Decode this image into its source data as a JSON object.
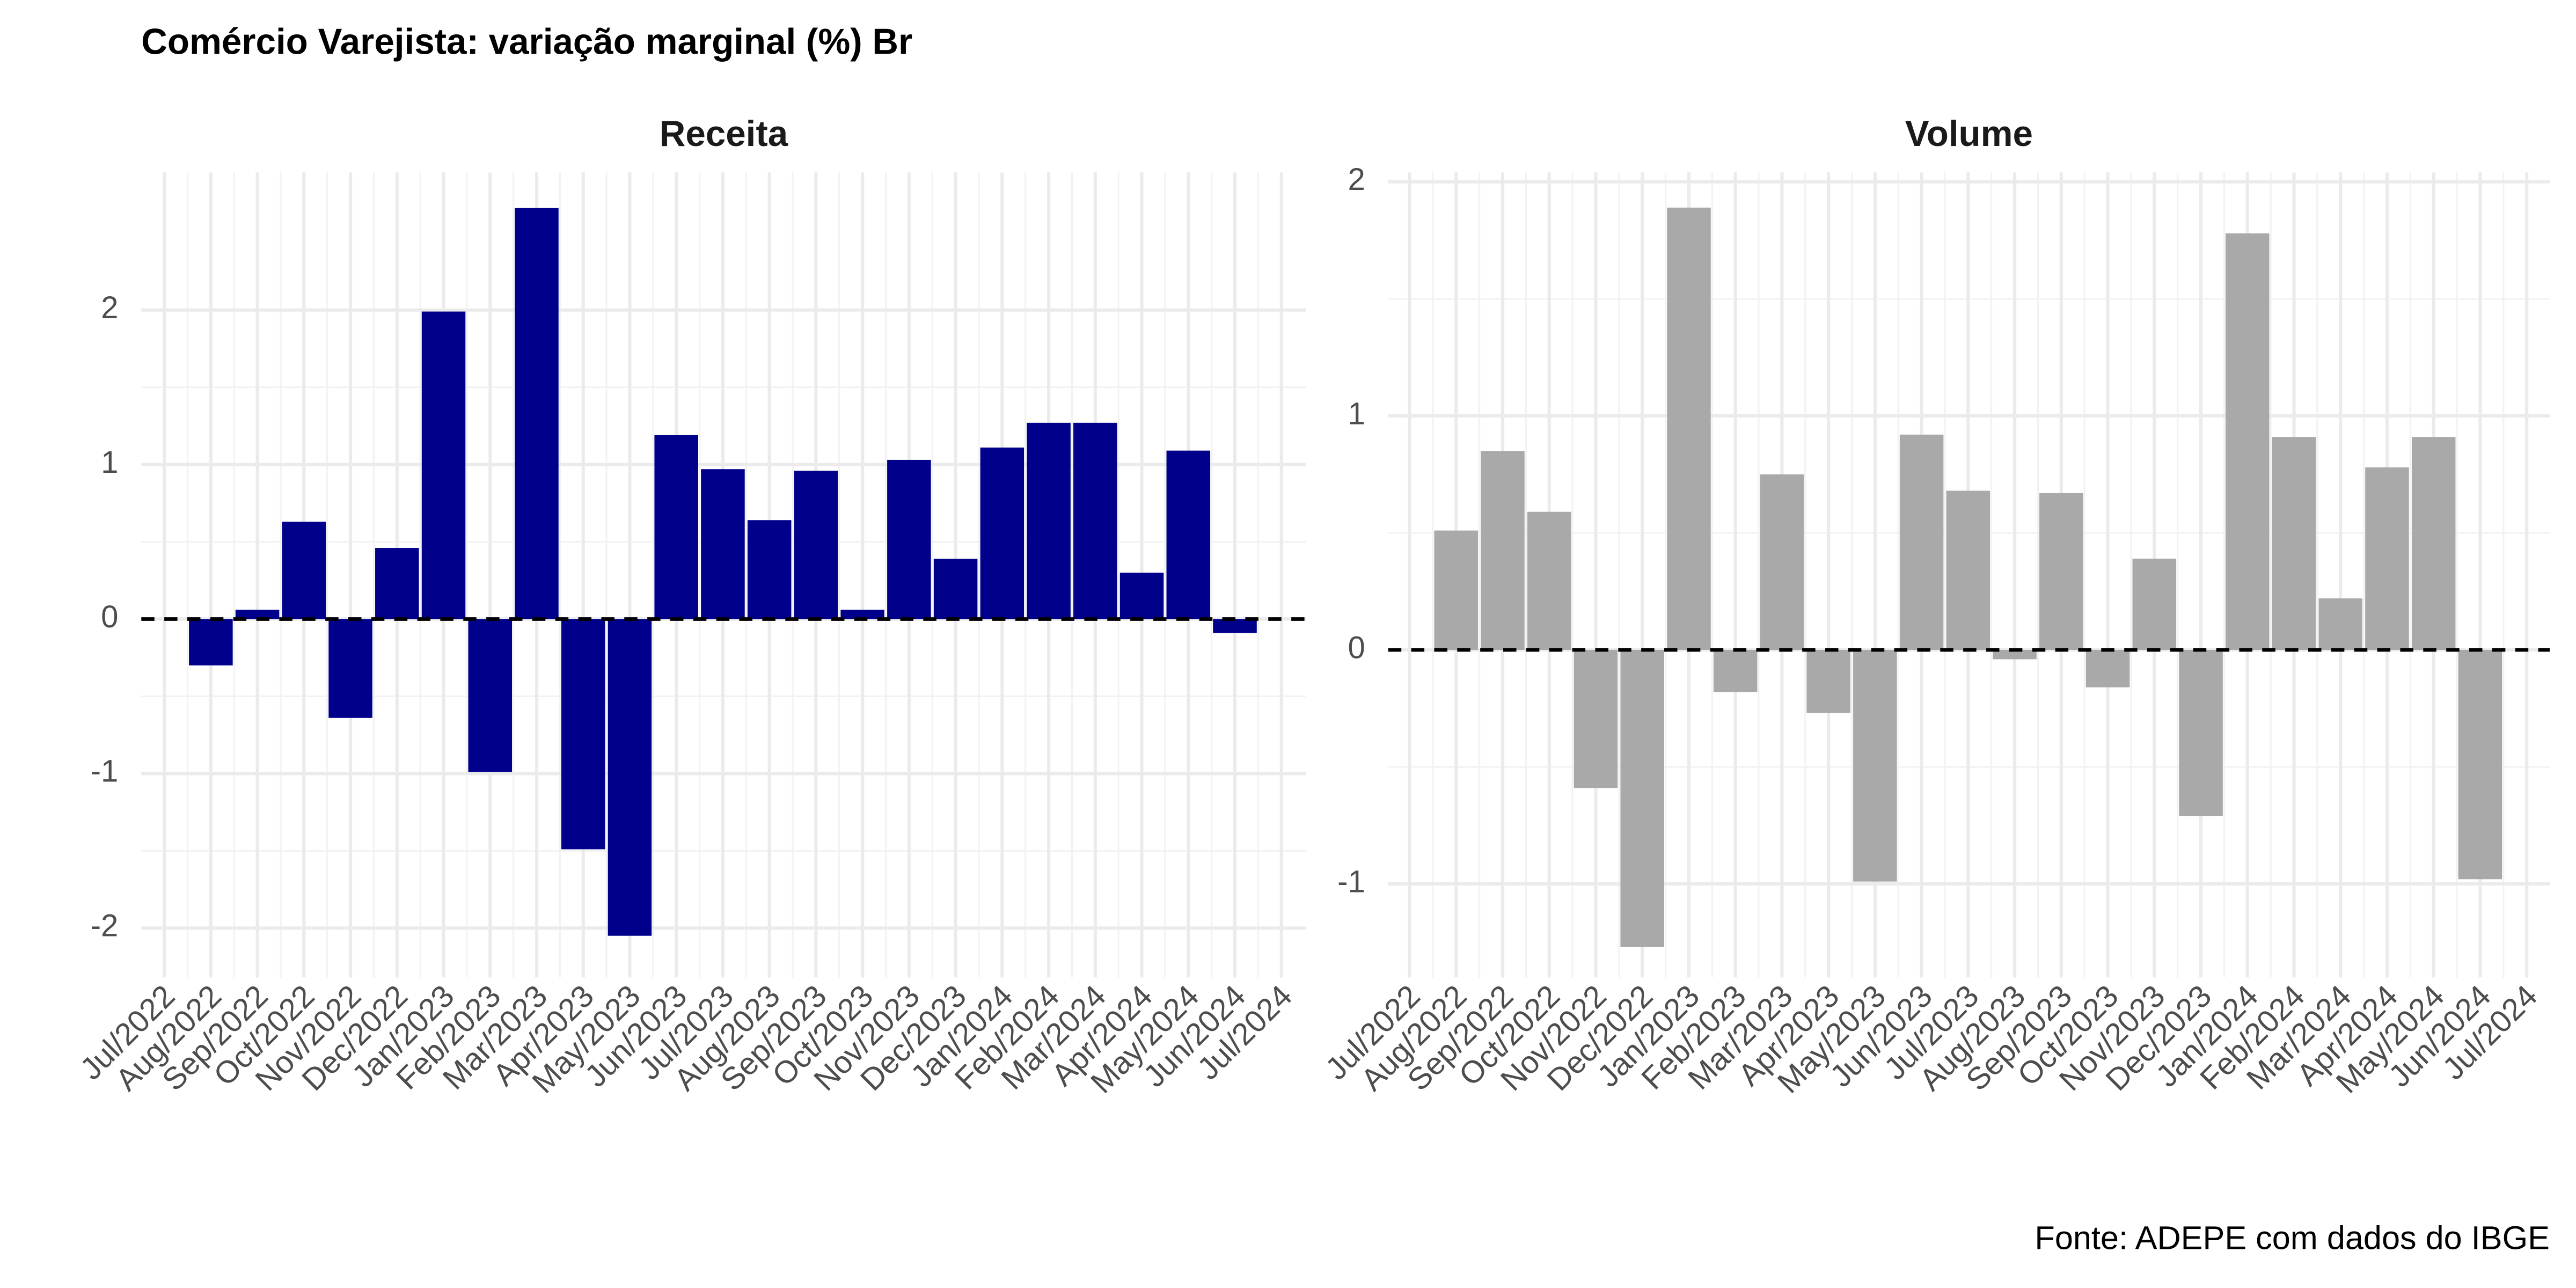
{
  "title": "Comércio Varejista: variação marginal (%) Br",
  "caption": "Fonte: ADEPE com dados do IBGE",
  "chart_data": [
    {
      "type": "bar",
      "title": "Receita",
      "color": "#00008b",
      "categories": [
        "Jul/2022",
        "Aug/2022",
        "Sep/2022",
        "Oct/2022",
        "Nov/2022",
        "Dec/2022",
        "Jan/2023",
        "Feb/2023",
        "Mar/2023",
        "Apr/2023",
        "May/2023",
        "Jun/2023",
        "Jul/2023",
        "Aug/2023",
        "Sep/2023",
        "Oct/2023",
        "Nov/2023",
        "Dec/2023",
        "Jan/2024",
        "Feb/2024",
        "Mar/2024",
        "Apr/2024",
        "May/2024",
        "Jun/2024",
        "Jul/2024"
      ],
      "values": [
        null,
        -0.3,
        0.06,
        0.63,
        -0.64,
        0.46,
        1.99,
        -0.99,
        2.66,
        -1.49,
        -2.05,
        1.19,
        0.97,
        0.64,
        0.96,
        0.06,
        1.03,
        0.39,
        1.11,
        1.27,
        1.27,
        0.3,
        1.09,
        -0.09,
        null
      ],
      "ylim": [
        -2.32,
        2.89
      ],
      "yticks": [
        -2,
        -1,
        0,
        1,
        2
      ],
      "grid": true
    },
    {
      "type": "bar",
      "title": "Volume",
      "color": "#a9a9a9",
      "categories": [
        "Jul/2022",
        "Aug/2022",
        "Sep/2022",
        "Oct/2022",
        "Nov/2022",
        "Dec/2022",
        "Jan/2023",
        "Feb/2023",
        "Mar/2023",
        "Apr/2023",
        "May/2023",
        "Jun/2023",
        "Jul/2023",
        "Aug/2023",
        "Sep/2023",
        "Oct/2023",
        "Nov/2023",
        "Dec/2023",
        "Jan/2024",
        "Feb/2024",
        "Mar/2024",
        "Apr/2024",
        "May/2024",
        "Jun/2024",
        "Jul/2024"
      ],
      "values": [
        null,
        0.51,
        0.85,
        0.59,
        -0.59,
        -1.27,
        1.89,
        -0.18,
        0.75,
        -0.27,
        -0.99,
        0.92,
        0.68,
        -0.04,
        0.67,
        -0.16,
        0.39,
        -0.71,
        1.78,
        0.91,
        0.22,
        0.78,
        0.91,
        -0.98,
        null
      ],
      "ylim": [
        -1.4,
        2.04
      ],
      "yticks": [
        -1,
        0,
        1,
        2
      ],
      "grid": true
    }
  ]
}
